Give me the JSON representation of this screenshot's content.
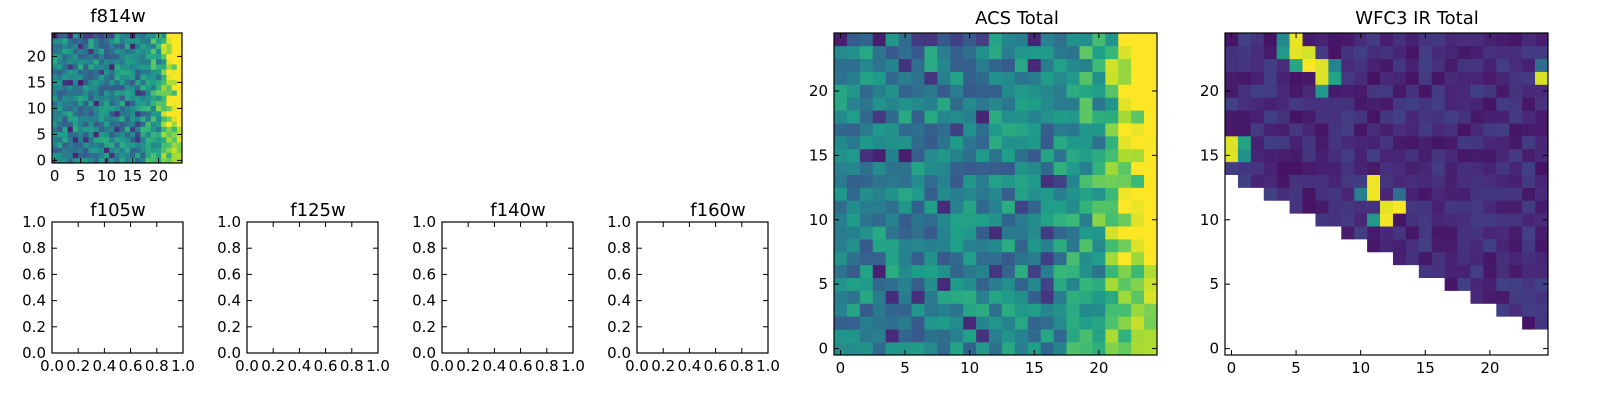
{
  "chart_data": [
    {
      "type": "heatmap",
      "title": "f814w",
      "size": 25,
      "x_ticks": [
        0,
        5,
        10,
        15,
        20
      ],
      "y_ticks": [
        0,
        5,
        10,
        15,
        20
      ],
      "colormap": "viridis",
      "description_pattern": "noisy mid-level values, bright band at x>=21"
    },
    {
      "type": "heatmap",
      "title": "f105w",
      "empty": true,
      "xlim": [
        0,
        1
      ],
      "ylim": [
        0,
        1
      ],
      "x_ticks": [
        "0.0",
        "0.2",
        "0.4",
        "0.6",
        "0.8",
        "1.0"
      ],
      "y_ticks": [
        "0.0",
        "0.2",
        "0.4",
        "0.6",
        "0.8",
        "1.0"
      ]
    },
    {
      "type": "heatmap",
      "title": "f125w",
      "empty": true,
      "xlim": [
        0,
        1
      ],
      "ylim": [
        0,
        1
      ],
      "x_ticks": [
        "0.0",
        "0.2",
        "0.4",
        "0.6",
        "0.8",
        "1.0"
      ],
      "y_ticks": [
        "0.0",
        "0.2",
        "0.4",
        "0.6",
        "0.8",
        "1.0"
      ]
    },
    {
      "type": "heatmap",
      "title": "f140w",
      "empty": true,
      "xlim": [
        0,
        1
      ],
      "ylim": [
        0,
        1
      ],
      "x_ticks": [
        "0.0",
        "0.2",
        "0.4",
        "0.6",
        "0.8",
        "1.0"
      ],
      "y_ticks": [
        "0.0",
        "0.2",
        "0.4",
        "0.6",
        "0.8",
        "1.0"
      ]
    },
    {
      "type": "heatmap",
      "title": "f160w",
      "empty": true,
      "xlim": [
        0,
        1
      ],
      "ylim": [
        0,
        1
      ],
      "x_ticks": [
        "0.0",
        "0.2",
        "0.4",
        "0.6",
        "0.8",
        "1.0"
      ],
      "y_ticks": [
        "0.0",
        "0.2",
        "0.4",
        "0.6",
        "0.8",
        "1.0"
      ]
    },
    {
      "type": "heatmap",
      "title": "ACS Total",
      "size": 25,
      "x_ticks": [
        0,
        5,
        10,
        15,
        20
      ],
      "y_ticks": [
        0,
        5,
        10,
        15,
        20
      ],
      "colormap": "viridis"
    },
    {
      "type": "heatmap",
      "title": "WFC3 IR Total",
      "size": 25,
      "x_ticks": [
        0,
        5,
        10,
        15,
        20
      ],
      "y_ticks": [
        0,
        5,
        10,
        15,
        20
      ],
      "colormap": "viridis",
      "masked_region": "lower-left triangle below diagonal",
      "bright_pixels": [
        [
          5,
          23
        ],
        [
          5,
          24
        ],
        [
          6,
          23
        ],
        [
          6,
          22
        ],
        [
          7,
          22
        ],
        [
          7,
          21
        ],
        [
          0,
          16
        ],
        [
          0,
          15
        ],
        [
          24,
          21
        ],
        [
          11,
          13
        ],
        [
          11,
          12
        ],
        [
          12,
          11
        ],
        [
          12,
          10
        ],
        [
          13,
          11
        ]
      ]
    }
  ]
}
